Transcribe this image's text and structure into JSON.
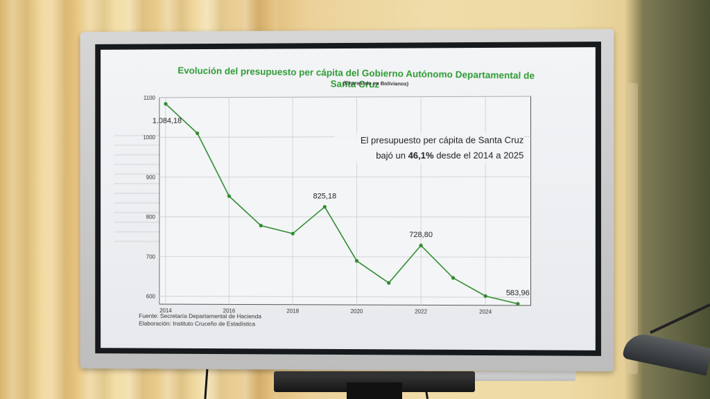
{
  "chart_data": {
    "type": "line",
    "title": "Evolución del presupuesto per cápita del Gobierno Autónomo Departamental de Santa Cruz",
    "subtitle": "(Expresado en Bolivianos)",
    "x": [
      2014,
      2015,
      2016,
      2017,
      2018,
      2019,
      2020,
      2021,
      2022,
      2023,
      2024,
      2025
    ],
    "series": [
      {
        "values": [
          1084.18,
          1010,
          852,
          778,
          758,
          825.18,
          690,
          635,
          728.8,
          648,
          603,
          583.96
        ]
      }
    ],
    "xticks": [
      "2014",
      "2016",
      "2018",
      "2020",
      "2022",
      "2024"
    ],
    "yticks": [
      "600",
      "700",
      "800",
      "900",
      "1000",
      "1100"
    ],
    "ylim": [
      580,
      1100
    ],
    "xlim": [
      2013.8,
      2025.4
    ],
    "grid": true,
    "line_color": "#2e8b2e",
    "annotations": [
      {
        "x": 2014,
        "y": 1084.18,
        "label": "1.084,18"
      },
      {
        "x": 2019,
        "y": 825.18,
        "label": "825,18"
      },
      {
        "x": 2022,
        "y": 728.8,
        "label": "728,80"
      },
      {
        "x": 2025,
        "y": 583.96,
        "label": "583,96"
      }
    ],
    "note": {
      "line1": "El presupuesto per cápita de Santa Cruz",
      "line2_pre": "bajó un ",
      "line2_bold": "46,1%",
      "line2_post": " desde el 2014 a 2025"
    }
  },
  "source": {
    "line1": "Fuente: Secretaría Departamental de Hacienda",
    "line2": "Elaboración: Instituto Cruceño de Estadística"
  }
}
